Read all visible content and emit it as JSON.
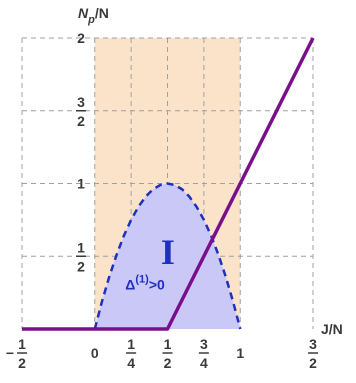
{
  "chart_data": {
    "type": "line",
    "xlabel": "J/N",
    "ylabel_main": "N",
    "ylabel_sub": "p",
    "ylabel_suffix": "/N",
    "xlim": [
      -0.5,
      1.5
    ],
    "ylim": [
      0,
      2
    ],
    "grid": true,
    "x_ticks": [
      {
        "value": -0.5,
        "num": "1",
        "den": "2",
        "sign": "−"
      },
      {
        "value": 0,
        "text": "0"
      },
      {
        "value": 0.25,
        "num": "1",
        "den": "4"
      },
      {
        "value": 0.5,
        "num": "1",
        "den": "2"
      },
      {
        "value": 0.75,
        "num": "3",
        "den": "4"
      },
      {
        "value": 1,
        "text": "1"
      },
      {
        "value": 1.5,
        "num": "3",
        "den": "2"
      }
    ],
    "y_ticks": [
      {
        "value": 0.5,
        "num": "1",
        "den": "2"
      },
      {
        "value": 1,
        "text": "1"
      },
      {
        "value": 1.5,
        "num": "3",
        "den": "2"
      },
      {
        "value": 2,
        "text": "2"
      }
    ],
    "shaded_band": {
      "x0": 0,
      "x1": 1,
      "y0": 0,
      "y1": 2,
      "color": "#fbe3c9"
    },
    "boundary_line": {
      "color": "#7a0f8c",
      "x": [
        -0.5,
        0.5,
        1.5
      ],
      "y": [
        0,
        0,
        2
      ]
    },
    "dashed_curve": {
      "color": "#1f2fbf",
      "x": [
        0,
        0.05,
        0.1,
        0.15,
        0.2,
        0.25,
        0.3,
        0.35,
        0.4,
        0.45,
        0.5,
        0.55,
        0.6,
        0.65,
        0.7,
        0.75,
        0.8,
        0.85,
        0.9,
        0.95,
        1
      ],
      "y": [
        0,
        0.19,
        0.36,
        0.51,
        0.64,
        0.75,
        0.84,
        0.91,
        0.96,
        0.99,
        1.0,
        0.99,
        0.96,
        0.91,
        0.84,
        0.75,
        0.64,
        0.51,
        0.36,
        0.19,
        0
      ]
    },
    "region": {
      "label": "I",
      "label_x": 0.53,
      "label_y": 0.53,
      "fill": "#c9c8f7",
      "annotation_base": "Δ",
      "annotation_sup": "(1)",
      "annotation_tail": ">0",
      "annotation_x": 0.21,
      "annotation_y": 0.27
    },
    "colors": {
      "grid": "#a0a0a0",
      "axis": "#7a0f8c",
      "text": "#3a3a3a",
      "accent": "#1f2fbf"
    }
  }
}
